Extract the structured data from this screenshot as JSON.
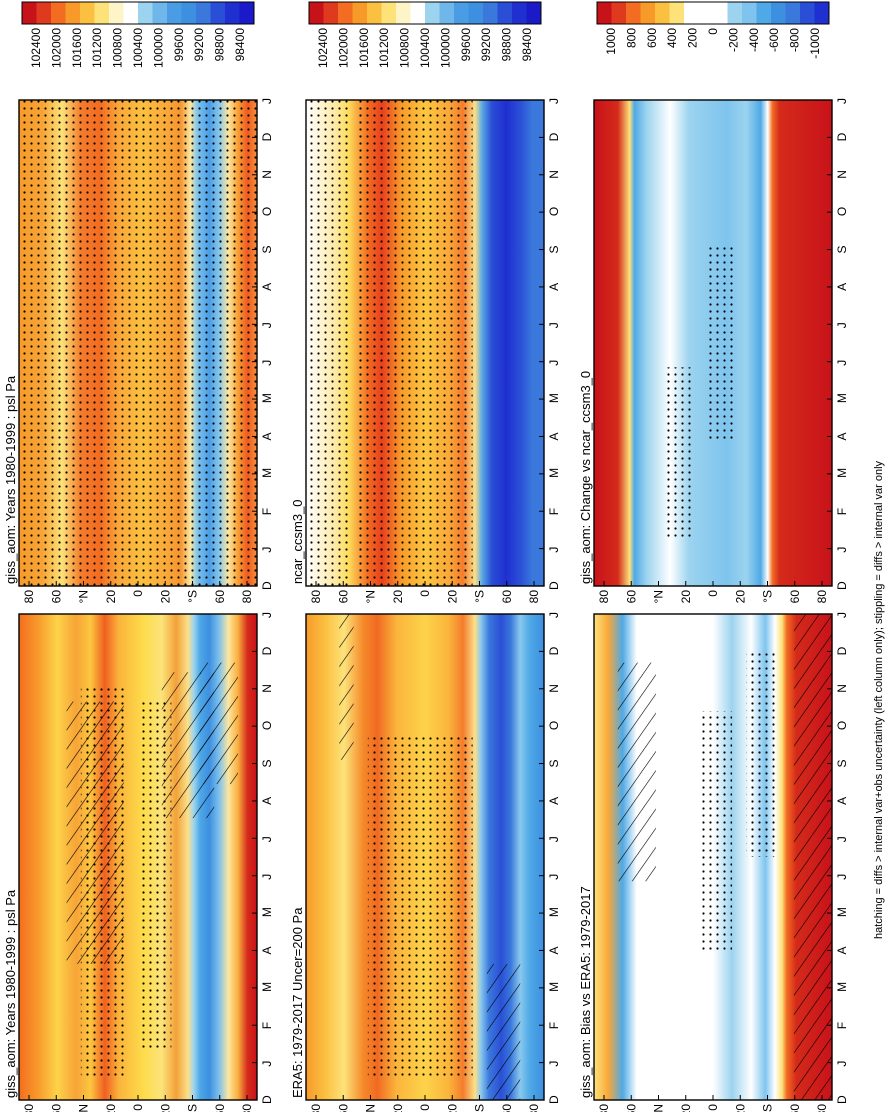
{
  "figure": {
    "footnote": "hatching = diffs > internal var+obs uncertainty (left column only); stippling = diffs > internal var only",
    "month_labels": [
      "D",
      "J",
      "F",
      "M",
      "A",
      "M",
      "J",
      "J",
      "A",
      "S",
      "O",
      "N",
      "D",
      "J"
    ],
    "lat_labels": [
      "80",
      "60",
      "°N",
      "20",
      "0",
      "20",
      "°S",
      "60",
      "80"
    ]
  },
  "chart_data": [
    {
      "type": "heatmap",
      "title": "giss_aom: Years 1980-1999 : psl Pa",
      "xlabel": "",
      "ylabel": "",
      "x": "month (Dec–Jan)",
      "y": "latitude 90N–90S",
      "colorbar": {
        "label": "",
        "ticks": [
          "102400",
          "102000",
          "101600",
          "101200",
          "100800",
          "100400",
          "100000",
          "99600",
          "99200",
          "98800",
          "98400"
        ]
      },
      "overlays": [
        "hatching",
        "stippling"
      ]
    },
    {
      "type": "heatmap",
      "title": "giss_aom: Years 1980-1999 : psl Pa",
      "xlabel": "",
      "ylabel": "",
      "colorbar": {
        "label": "",
        "ticks": [
          "102400",
          "102000",
          "101600",
          "101200",
          "100800",
          "100400",
          "100000",
          "99600",
          "99200",
          "98800",
          "98400"
        ]
      },
      "overlays": [
        "stippling"
      ]
    },
    {
      "type": "heatmap",
      "title": "ERA5: 1979-2017 Uncer=200 Pa",
      "xlabel": "",
      "ylabel": "",
      "colorbar": {
        "label": "",
        "ticks": [
          "102400",
          "102000",
          "101600",
          "101200",
          "100800",
          "100400",
          "100000",
          "99600",
          "99200",
          "98800",
          "98400"
        ]
      },
      "overlays": [
        "hatching",
        "stippling"
      ]
    },
    {
      "type": "heatmap",
      "title": "ncar_ccsm3_0",
      "xlabel": "",
      "ylabel": "",
      "colorbar": {
        "label": "",
        "ticks": [
          "102400",
          "102000",
          "101600",
          "101200",
          "100800",
          "100400",
          "100000",
          "99600",
          "99200",
          "98800",
          "98400"
        ]
      },
      "overlays": [
        "stippling"
      ]
    },
    {
      "type": "heatmap",
      "title": "giss_aom: Bias vs ERA5: 1979-2017",
      "xlabel": "",
      "ylabel": "",
      "colorbar": {
        "label": "",
        "ticks": [
          "1000",
          "800",
          "600",
          "400",
          "200",
          "0",
          "-200",
          "-400",
          "-600",
          "-800",
          "-1000"
        ]
      },
      "overlays": [
        "hatching",
        "stippling"
      ]
    },
    {
      "type": "heatmap",
      "title": "giss_aom: Change vs ncar_ccsm3_0",
      "xlabel": "",
      "ylabel": "",
      "colorbar": {
        "label": "",
        "ticks": [
          "1000",
          "800",
          "600",
          "400",
          "200",
          "0",
          "-200",
          "-400",
          "-600",
          "-800",
          "-1000"
        ]
      },
      "overlays": [
        "stippling"
      ]
    }
  ]
}
